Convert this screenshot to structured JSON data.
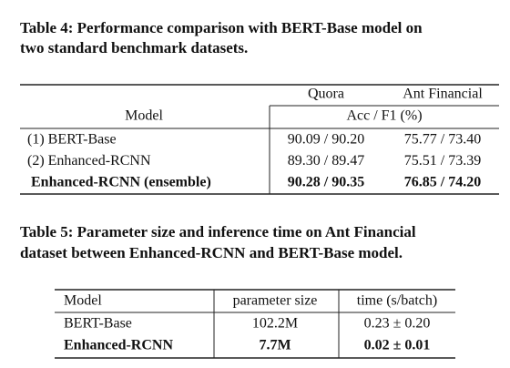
{
  "table_4": {
    "caption": [
      "Table 4: Performance comparison with BERT-Base model on",
      "two standard benchmark datasets."
    ],
    "header_top": [
      "Quora",
      "Ant Financial"
    ],
    "header_bottom": [
      "Model",
      "Acc / F1 (%)"
    ],
    "rows": [
      [
        "(1) BERT-Base",
        "90.09 / 90.20",
        "75.77 / 73.40"
      ],
      [
        "(2) Enhanced-RCNN",
        "89.30 / 89.47",
        "75.51 / 73.39"
      ],
      [
        "Enhanced-RCNN (ensemble)",
        "90.28 / 90.35",
        "76.85 / 74.20"
      ]
    ]
  },
  "table_5": {
    "caption": [
      "Table 5: Parameter size and inference time on Ant Financial",
      "dataset between Enhanced-RCNN and BERT-Base model."
    ],
    "header": [
      "Model",
      "parameter size",
      "time (s/batch)"
    ],
    "rows": [
      [
        "BERT-Base",
        "102.2M",
        "0.23 ± 0.20"
      ],
      [
        "Enhanced-RCNN",
        "7.7M",
        "0.02 ± 0.01"
      ]
    ]
  }
}
